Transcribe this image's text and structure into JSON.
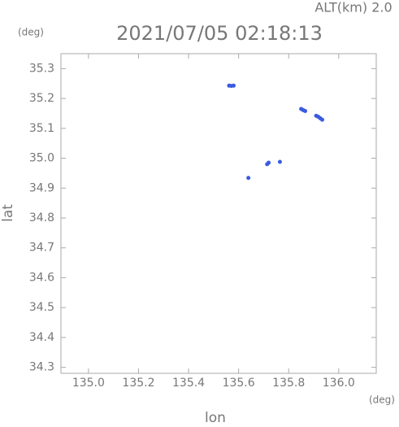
{
  "chart_data": {
    "type": "scatter",
    "title": "2021/07/05 02:18:13",
    "subtitle": "ALT(km) 2.0",
    "x_label": "lon",
    "y_label": "lat",
    "x_unit": "(deg)",
    "y_unit": "(deg)",
    "color": "#3a5ae0",
    "x": [
      135.562,
      135.571,
      135.58,
      135.85,
      135.858,
      135.866,
      135.91,
      135.918,
      135.926,
      135.934,
      135.714,
      135.72,
      135.765,
      135.639
    ],
    "y": [
      35.243,
      35.242,
      35.243,
      35.165,
      35.161,
      35.158,
      35.142,
      35.139,
      35.134,
      35.129,
      34.98,
      34.985,
      34.988,
      34.934
    ],
    "xlim": [
      134.89,
      136.15
    ],
    "ylim": [
      34.28,
      35.35
    ],
    "xticks": [
      {
        "value": 135,
        "label": "135.0"
      },
      135.2,
      135.4,
      135.6,
      135.8,
      {
        "value": 136,
        "label": "136.0"
      }
    ],
    "yticks": [
      34.3,
      34.4,
      34.5,
      34.6,
      34.7,
      34.8,
      34.9,
      {
        "value": 35,
        "label": "35.0"
      },
      35.1,
      35.2,
      35.3
    ]
  }
}
